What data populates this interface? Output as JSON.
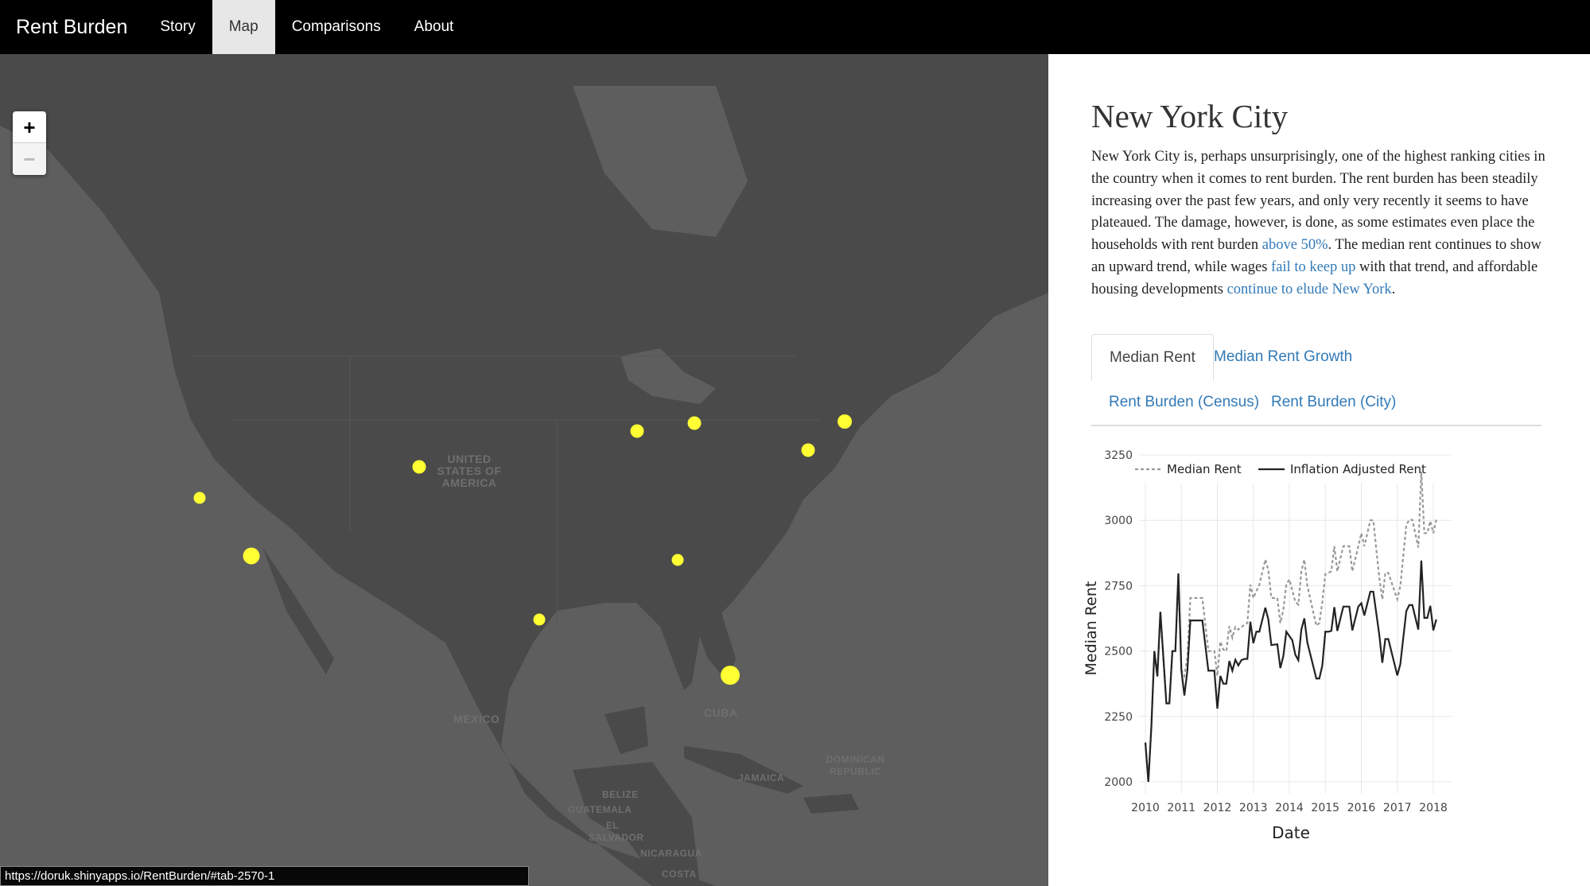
{
  "nav": {
    "brand": "Rent Burden",
    "items": [
      {
        "label": "Story"
      },
      {
        "label": "Map",
        "active": true
      },
      {
        "label": "Comparisons"
      },
      {
        "label": "About"
      }
    ]
  },
  "map": {
    "zoom_in": "+",
    "zoom_out": "−",
    "labels": {
      "usa": "UNITED STATES OF AMERICA",
      "mexico": "MEXICO",
      "cuba": "CUBA",
      "belize": "BELIZE",
      "guatemala": "GUATEMALA",
      "el_salvador": "EL SALVADOR",
      "nicaragua": "NICARAGUA",
      "costa_rica": "COSTA",
      "jamaica": "JAMAICA",
      "dominican": "DOMINICAN REPUBLIC"
    },
    "marker_color": "#ffff33",
    "water_color": "#5e5e5e",
    "land_color": "#4a4a4a"
  },
  "status_url": "https://doruk.shinyapps.io/RentBurden/#tab-2570-1",
  "panel": {
    "title": "New York City",
    "p1": "New York City is, perhaps unsurprisingly, one of the highest ranking cities in the country when it comes to rent burden. The rent burden has been steadily increasing over the past few years, and only very recently it seems to have plateaued. The damage, however, is done, as some estimates even place the households with rent burden ",
    "link1": "above 50%",
    "p2": ". The median rent continues to show an upward trend, while wages ",
    "link2": "fail to keep up",
    "p3": " with that trend, and affordable housing developments ",
    "link3": "continue to elude New York",
    "p4": ".",
    "tabs": [
      {
        "label": "Median Rent",
        "active": true
      },
      {
        "label": "Median Rent Growth"
      },
      {
        "label": "Rent Burden (Census)"
      },
      {
        "label": "Rent Burden (City)"
      }
    ]
  },
  "chart_data": {
    "type": "line",
    "xlabel": "Date",
    "ylabel": "Median Rent",
    "ylim": [
      2000,
      3250
    ],
    "yticks": [
      "2000",
      "2250",
      "2500",
      "2750",
      "3000",
      "3250"
    ],
    "xticks": [
      "2010",
      "2011",
      "2012",
      "2013",
      "2014",
      "2015",
      "2016",
      "2017",
      "2018"
    ],
    "grid": true,
    "legend": "top",
    "series": [
      {
        "name": "Median Rent",
        "style": "dashed",
        "color": "#999999",
        "points": [
          [
            "2010-01",
            2150
          ],
          [
            "2010-02",
            2000
          ],
          [
            "2010-03",
            2212
          ],
          [
            "2010-04",
            2500
          ],
          [
            "2010-05",
            2403
          ],
          [
            "2010-06",
            2650
          ],
          [
            "2010-08",
            2300
          ],
          [
            "2010-09",
            2300
          ],
          [
            "2010-10",
            2500
          ],
          [
            "2010-11",
            2500
          ],
          [
            "2010-12",
            2797
          ],
          [
            "2011-01",
            2428
          ],
          [
            "2011-02",
            2405
          ],
          [
            "2011-03",
            2475
          ],
          [
            "2011-04",
            2703
          ],
          [
            "2011-08",
            2703
          ],
          [
            "2011-10",
            2500
          ],
          [
            "2011-12",
            2500
          ],
          [
            "2012-01",
            2405
          ],
          [
            "2012-02",
            2536
          ],
          [
            "2012-03",
            2506
          ],
          [
            "2012-04",
            2500
          ],
          [
            "2012-05",
            2595
          ],
          [
            "2012-06",
            2551
          ],
          [
            "2012-07",
            2592
          ],
          [
            "2012-08",
            2582
          ],
          [
            "2012-09",
            2592
          ],
          [
            "2012-11",
            2607
          ],
          [
            "2012-12",
            2754
          ],
          [
            "2013-01",
            2703
          ],
          [
            "2013-03",
            2754
          ],
          [
            "2013-05",
            2850
          ],
          [
            "2013-06",
            2810
          ],
          [
            "2013-07",
            2703
          ],
          [
            "2013-09",
            2703
          ],
          [
            "2013-10",
            2607
          ],
          [
            "2013-11",
            2658
          ],
          [
            "2013-12",
            2754
          ],
          [
            "2014-01",
            2774
          ],
          [
            "2014-03",
            2688
          ],
          [
            "2014-04",
            2678
          ],
          [
            "2014-05",
            2805
          ],
          [
            "2014-06",
            2850
          ],
          [
            "2014-07",
            2749
          ],
          [
            "2014-10",
            2597
          ],
          [
            "2014-11",
            2607
          ],
          [
            "2014-12",
            2688
          ],
          [
            "2015-01",
            2794
          ],
          [
            "2015-03",
            2805
          ],
          [
            "2015-04",
            2901
          ],
          [
            "2015-05",
            2805
          ],
          [
            "2015-07",
            2901
          ],
          [
            "2015-09",
            2901
          ],
          [
            "2015-10",
            2805
          ],
          [
            "2015-12",
            2901
          ],
          [
            "2016-01",
            2951
          ],
          [
            "2016-02",
            2901
          ],
          [
            "2016-04",
            3000
          ],
          [
            "2016-05",
            3000
          ],
          [
            "2016-07",
            2779
          ],
          [
            "2016-08",
            2698
          ],
          [
            "2016-09",
            2799
          ],
          [
            "2016-10",
            2799
          ],
          [
            "2017-01",
            2698
          ],
          [
            "2017-02",
            2749
          ],
          [
            "2017-04",
            2982
          ],
          [
            "2017-05",
            3002
          ],
          [
            "2017-06",
            3002
          ],
          [
            "2017-08",
            2896
          ],
          [
            "2017-09",
            3186
          ],
          [
            "2017-10",
            2951
          ],
          [
            "2017-11",
            2951
          ],
          [
            "2017-12",
            2997
          ],
          [
            "2018-01",
            2951
          ],
          [
            "2018-02",
            3002
          ]
        ]
      },
      {
        "name": "Inflation Adjusted Rent",
        "style": "solid",
        "color": "#222222",
        "points": [
          [
            "2010-01",
            2150
          ],
          [
            "2010-02",
            2000
          ],
          [
            "2010-03",
            2212
          ],
          [
            "2010-04",
            2500
          ],
          [
            "2010-05",
            2403
          ],
          [
            "2010-06",
            2650
          ],
          [
            "2010-08",
            2300
          ],
          [
            "2010-09",
            2300
          ],
          [
            "2010-10",
            2500
          ],
          [
            "2010-11",
            2500
          ],
          [
            "2010-12",
            2797
          ],
          [
            "2011-01",
            2428
          ],
          [
            "2011-02",
            2330
          ],
          [
            "2011-03",
            2425
          ],
          [
            "2011-04",
            2617
          ],
          [
            "2011-08",
            2617
          ],
          [
            "2011-10",
            2425
          ],
          [
            "2011-12",
            2425
          ],
          [
            "2012-01",
            2280
          ],
          [
            "2012-02",
            2405
          ],
          [
            "2012-03",
            2375
          ],
          [
            "2012-04",
            2375
          ],
          [
            "2012-05",
            2462
          ],
          [
            "2012-06",
            2425
          ],
          [
            "2012-07",
            2467
          ],
          [
            "2012-08",
            2445
          ],
          [
            "2012-09",
            2465
          ],
          [
            "2012-10",
            2470
          ],
          [
            "2012-11",
            2470
          ],
          [
            "2012-12",
            2612
          ],
          [
            "2013-01",
            2530
          ],
          [
            "2013-02",
            2574
          ],
          [
            "2013-03",
            2574
          ],
          [
            "2013-05",
            2666
          ],
          [
            "2013-06",
            2621
          ],
          [
            "2013-07",
            2523
          ],
          [
            "2013-09",
            2526
          ],
          [
            "2013-10",
            2435
          ],
          [
            "2013-11",
            2481
          ],
          [
            "2013-12",
            2574
          ],
          [
            "2014-02",
            2541
          ],
          [
            "2014-03",
            2486
          ],
          [
            "2014-04",
            2465
          ],
          [
            "2014-05",
            2582
          ],
          [
            "2014-06",
            2625
          ],
          [
            "2014-07",
            2533
          ],
          [
            "2014-10",
            2395
          ],
          [
            "2014-11",
            2395
          ],
          [
            "2014-12",
            2445
          ],
          [
            "2015-01",
            2574
          ],
          [
            "2015-02",
            2574
          ],
          [
            "2015-03",
            2577
          ],
          [
            "2015-04",
            2668
          ],
          [
            "2015-05",
            2577
          ],
          [
            "2015-07",
            2670
          ],
          [
            "2015-09",
            2670
          ],
          [
            "2015-10",
            2579
          ],
          [
            "2015-12",
            2670
          ],
          [
            "2016-01",
            2683
          ],
          [
            "2016-02",
            2636
          ],
          [
            "2016-04",
            2727
          ],
          [
            "2016-05",
            2727
          ],
          [
            "2016-07",
            2561
          ],
          [
            "2016-08",
            2455
          ],
          [
            "2016-09",
            2546
          ],
          [
            "2016-10",
            2546
          ],
          [
            "2017-01",
            2407
          ],
          [
            "2017-02",
            2450
          ],
          [
            "2017-04",
            2653
          ],
          [
            "2017-05",
            2676
          ],
          [
            "2017-06",
            2676
          ],
          [
            "2017-08",
            2582
          ],
          [
            "2017-09",
            2846
          ],
          [
            "2017-10",
            2627
          ],
          [
            "2017-11",
            2627
          ],
          [
            "2017-12",
            2673
          ],
          [
            "2018-01",
            2579
          ],
          [
            "2018-02",
            2621
          ]
        ]
      }
    ]
  }
}
